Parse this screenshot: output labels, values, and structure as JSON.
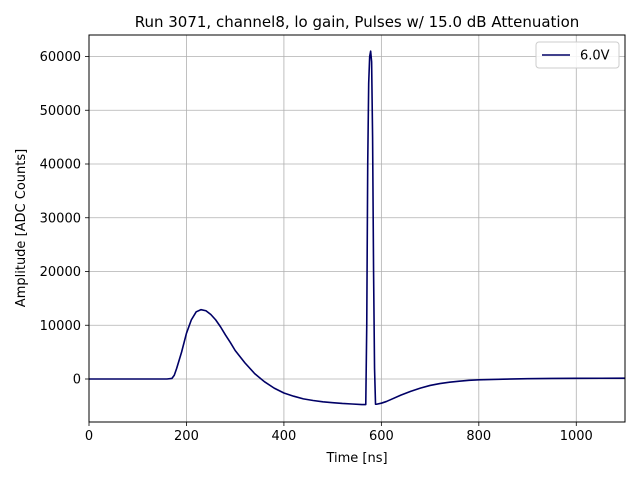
{
  "chart_data": {
    "type": "line",
    "title": "Run 3071, channel8, lo gain, Pulses w/ 15.0 dB Attenuation",
    "xlabel": "Time [ns]",
    "ylabel": "Amplitude [ADC Counts]",
    "xlim": [
      0,
      1100
    ],
    "ylim": [
      -8000,
      64000
    ],
    "xticks": [
      0,
      200,
      400,
      600,
      800,
      1000
    ],
    "yticks": [
      0,
      10000,
      20000,
      30000,
      40000,
      50000,
      60000
    ],
    "grid": true,
    "legend_position": "top-right",
    "series": [
      {
        "name": "6.0V",
        "color": "#000066",
        "x": [
          0,
          100,
          160,
          170,
          175,
          180,
          190,
          200,
          210,
          220,
          230,
          240,
          250,
          260,
          270,
          280,
          290,
          300,
          320,
          340,
          360,
          380,
          400,
          420,
          440,
          460,
          480,
          500,
          520,
          540,
          560,
          568,
          570,
          572,
          574,
          576,
          578,
          580,
          582,
          584,
          586,
          588,
          590,
          600,
          610,
          620,
          640,
          660,
          680,
          700,
          720,
          740,
          760,
          780,
          800,
          850,
          900,
          950,
          1000,
          1050,
          1100
        ],
        "y": [
          0,
          0,
          0,
          100,
          700,
          2000,
          5000,
          8500,
          11000,
          12500,
          12900,
          12700,
          12000,
          11000,
          9700,
          8200,
          6800,
          5300,
          3000,
          1000,
          -500,
          -1700,
          -2600,
          -3200,
          -3700,
          -4000,
          -4250,
          -4400,
          -4550,
          -4650,
          -4750,
          -4750,
          10000,
          40000,
          55000,
          60000,
          61000,
          59000,
          45000,
          20000,
          2000,
          -4700,
          -4700,
          -4500,
          -4200,
          -3800,
          -3000,
          -2300,
          -1700,
          -1200,
          -850,
          -600,
          -400,
          -250,
          -150,
          -30,
          50,
          100,
          130,
          140,
          150
        ]
      }
    ]
  }
}
